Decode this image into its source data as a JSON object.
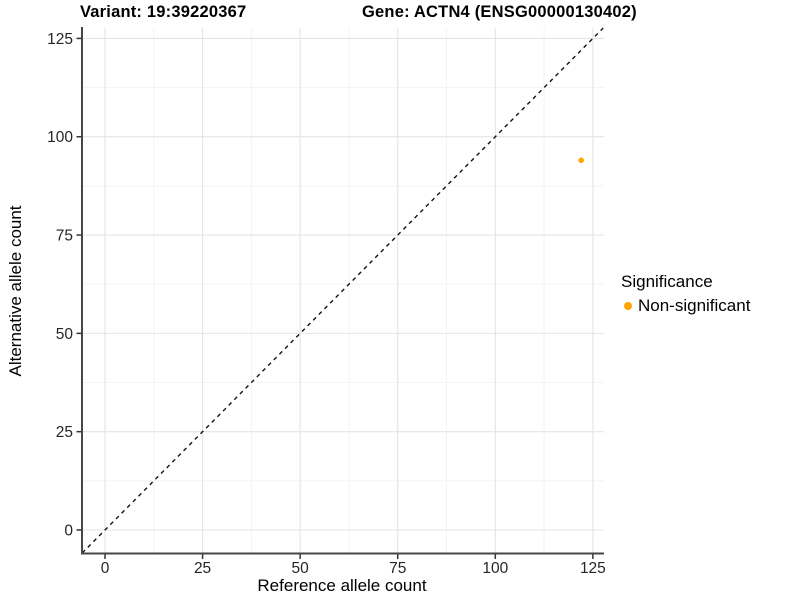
{
  "chart_data": {
    "type": "scatter",
    "title_left": "Variant: 19:39220367",
    "title_right": "Gene: ACTN4 (ENSG00000130402)",
    "xlabel": "Reference allele count",
    "ylabel": "Alternative allele count",
    "x_ticks": [
      0,
      25,
      50,
      75,
      100,
      125
    ],
    "y_ticks": [
      0,
      25,
      50,
      75,
      100,
      125
    ],
    "xlim": [
      -6.15,
      127.85
    ],
    "ylim": [
      -5.85,
      127.65
    ],
    "grid": "major+minor",
    "points": [
      {
        "x": 122,
        "y": 94,
        "series": "Non-significant"
      }
    ],
    "reference_line": {
      "type": "identity",
      "style": "dashed"
    },
    "legend": {
      "title": "Significance",
      "position": "right",
      "items": [
        {
          "label": "Non-significant",
          "color": "#FFA500"
        }
      ]
    },
    "colors": {
      "point": "#FFA500",
      "grid_major": "#E4E4E4",
      "grid_minor": "#F2F2F2",
      "axis_line": "#474747",
      "tick": "#333333",
      "tick_label": "#262626",
      "dashed_line": "#111111",
      "text": "#000000"
    }
  }
}
